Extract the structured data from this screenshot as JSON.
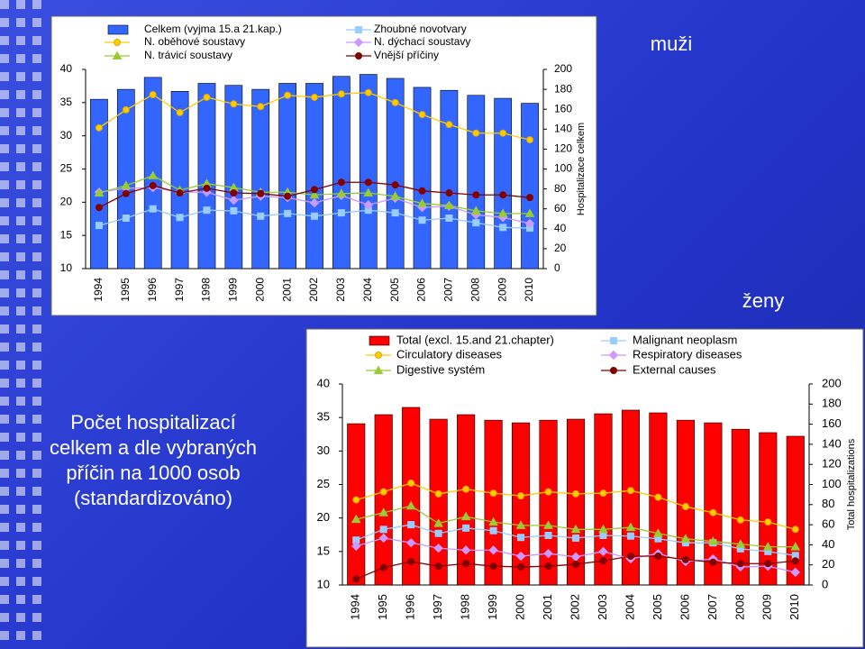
{
  "slide": {
    "label_men": "muži",
    "label_women": "ženy",
    "caption_lines": [
      "Počet hospitalizací",
      "celkem a dle vybraných",
      "příčin na 1000 osob",
      "(standardizováno)"
    ]
  },
  "chart_data": [
    {
      "type": "bar-line",
      "y2_label": "Hospitalizace celkem",
      "categories": [
        "1994",
        "1995",
        "1996",
        "1997",
        "1998",
        "1999",
        "2000",
        "2001",
        "2002",
        "2003",
        "2004",
        "2005",
        "2006",
        "2007",
        "2008",
        "2009",
        "2010"
      ],
      "ylim": [
        10,
        40
      ],
      "yticks": [
        10,
        15,
        20,
        25,
        30,
        35,
        40
      ],
      "y2lim": [
        0,
        200
      ],
      "y2ticks": [
        0,
        20,
        40,
        60,
        80,
        100,
        120,
        140,
        160,
        180,
        200
      ],
      "series": [
        {
          "name": "Celkem (vyjma 15.a 21.kap.)",
          "color": "#3366ff",
          "axis": "y2",
          "kind": "bar",
          "values": [
            170,
            180,
            192,
            178,
            186,
            184,
            180,
            186,
            186,
            193,
            195,
            191,
            182,
            179,
            174,
            171,
            166
          ]
        },
        {
          "name": "Zhoubné novotvary",
          "color": "#99ccff",
          "marker": "square",
          "values": [
            16.5,
            17.6,
            19.0,
            17.7,
            18.8,
            18.7,
            17.9,
            18.3,
            17.9,
            18.4,
            18.8,
            18.4,
            17.3,
            17.6,
            16.9,
            16.2,
            16.1
          ]
        },
        {
          "name": "N. oběhové soustavy",
          "color": "#ffcc00",
          "marker": "circle",
          "values": [
            31.2,
            33.9,
            36.2,
            33.5,
            35.8,
            34.8,
            34.4,
            36.1,
            35.8,
            36.3,
            36.5,
            35.0,
            33.2,
            31.7,
            30.4,
            30.4,
            29.4
          ]
        },
        {
          "name": "N. dýchací soustavy",
          "color": "#cc99ff",
          "marker": "diamond",
          "values": [
            21.5,
            22.1,
            22.2,
            21.5,
            21.5,
            20.3,
            20.9,
            20.7,
            19.9,
            21.0,
            19.6,
            20.6,
            19.2,
            19.4,
            18.1,
            17.7,
            16.8
          ]
        },
        {
          "name": "N. trávicí soustavy",
          "color": "#99cc33",
          "marker": "triangle",
          "values": [
            21.4,
            22.5,
            24.0,
            21.8,
            22.8,
            22.2,
            21.5,
            21.5,
            21.1,
            21.3,
            21.4,
            20.9,
            19.8,
            19.5,
            18.7,
            18.3,
            18.3
          ]
        },
        {
          "name": "Vnější příčiny",
          "color": "#800000",
          "marker": "circle",
          "values": [
            19.2,
            21.3,
            22.5,
            21.4,
            22.1,
            21.4,
            21.3,
            20.9,
            21.9,
            23.0,
            23.0,
            22.6,
            21.7,
            21.4,
            21.1,
            21.1,
            20.7
          ]
        }
      ]
    },
    {
      "type": "bar-line",
      "y2_label": "Total hospitalizations",
      "categories": [
        "1994",
        "1995",
        "1996",
        "1997",
        "1998",
        "1999",
        "2000",
        "2001",
        "2002",
        "2003",
        "2004",
        "2005",
        "2006",
        "2007",
        "2008",
        "2009",
        "2010"
      ],
      "ylim": [
        10,
        40
      ],
      "yticks": [
        10,
        15,
        20,
        25,
        30,
        35,
        40
      ],
      "y2lim": [
        0,
        200
      ],
      "y2ticks": [
        0,
        20,
        40,
        60,
        80,
        100,
        120,
        140,
        160,
        180,
        200
      ],
      "series": [
        {
          "name": "Total (excl. 15.and 21.chapter)",
          "color": "#ff0000",
          "axis": "y2",
          "kind": "bar",
          "values": [
            160.5,
            169.5,
            176.7,
            165,
            169.5,
            164,
            161.4,
            164,
            165,
            170.4,
            174,
            171.3,
            164,
            161.4,
            155,
            151.6,
            148
          ]
        },
        {
          "name": "Malignant neoplasm",
          "color": "#99ccff",
          "marker": "square",
          "values": [
            16.7,
            18.3,
            19.0,
            17.7,
            18.5,
            18.1,
            17.1,
            17.4,
            17.0,
            17.4,
            17.3,
            16.9,
            16.3,
            16.3,
            15.4,
            15.0,
            14.4
          ]
        },
        {
          "name": "Circulatory diseases",
          "color": "#ffcc00",
          "marker": "circle",
          "values": [
            22.7,
            23.9,
            25.2,
            23.6,
            24.3,
            23.7,
            23.3,
            23.9,
            23.6,
            23.7,
            24.1,
            23.1,
            21.7,
            20.8,
            19.7,
            19.4,
            18.3
          ]
        },
        {
          "name": "Respiratory diseases",
          "color": "#cc99ff",
          "marker": "diamond",
          "values": [
            15.8,
            17.0,
            16.3,
            15.5,
            15.2,
            15.2,
            14.3,
            14.7,
            14.2,
            15.0,
            13.9,
            14.7,
            13.5,
            13.9,
            12.7,
            12.8,
            11.9
          ]
        },
        {
          "name": "Digestive systém",
          "color": "#99cc33",
          "marker": "triangle",
          "values": [
            19.8,
            20.8,
            21.8,
            19.2,
            20.2,
            19.4,
            18.9,
            18.9,
            18.3,
            18.3,
            18.6,
            17.7,
            16.9,
            16.5,
            16.1,
            15.7,
            15.7
          ]
        },
        {
          "name": "External causes",
          "color": "#800000",
          "marker": "circle",
          "values": [
            10.9,
            12.6,
            13.5,
            12.8,
            13.2,
            12.8,
            12.7,
            12.8,
            13.1,
            13.6,
            14.3,
            14.3,
            13.8,
            13.4,
            13.2,
            13.2,
            13.6
          ]
        }
      ]
    }
  ]
}
